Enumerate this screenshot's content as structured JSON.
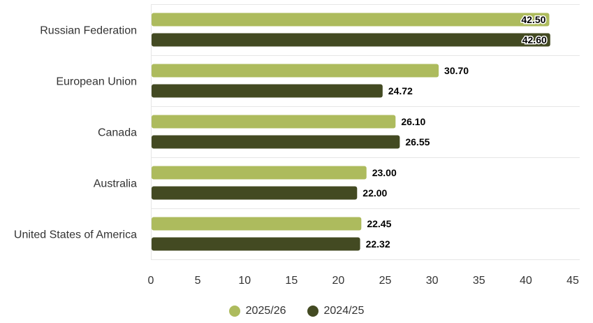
{
  "chart_data": {
    "type": "bar",
    "orientation": "horizontal",
    "categories": [
      "Russian Federation",
      "European Union",
      "Canada",
      "Australia",
      "United States of America"
    ],
    "series": [
      {
        "name": "2025/26",
        "color": "#adbb5d",
        "values": [
          42.5,
          30.7,
          26.1,
          23.0,
          22.45
        ]
      },
      {
        "name": "2024/25",
        "color": "#434a22",
        "values": [
          42.6,
          24.72,
          26.55,
          22.0,
          22.32
        ]
      }
    ],
    "value_labels": [
      [
        "42.50",
        "30.70",
        "26.10",
        "23.00",
        "22.45"
      ],
      [
        "42.60",
        "24.72",
        "26.55",
        "22.00",
        "22.32"
      ]
    ],
    "xticks": [
      "0",
      "5",
      "10",
      "15",
      "20",
      "25",
      "30",
      "35",
      "40",
      "45"
    ],
    "xlim": [
      0,
      45
    ],
    "grid": true,
    "legend_position": "bottom-center",
    "title": "",
    "xlabel": "",
    "ylabel": ""
  }
}
